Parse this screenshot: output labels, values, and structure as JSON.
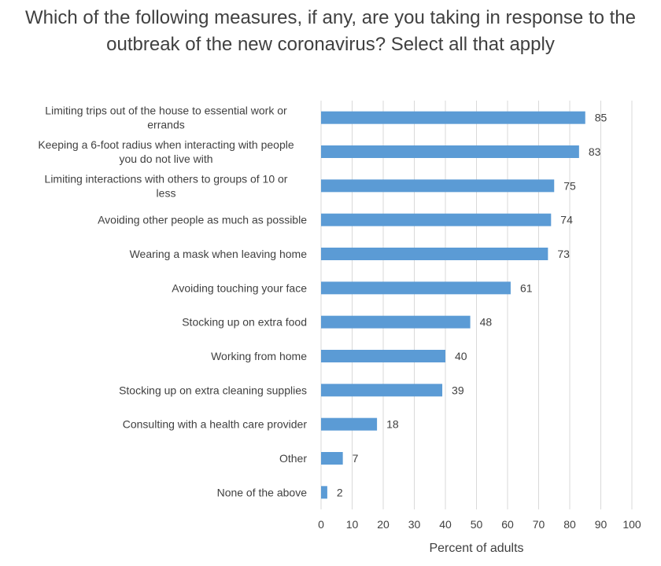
{
  "chart_data": {
    "type": "bar",
    "orientation": "horizontal",
    "title": "Which of the following measures, if any, are you taking in response to the outbreak of the new coronavirus? Select all that apply",
    "categories": [
      [
        "Limiting trips out of the house to essential work or",
        "errands"
      ],
      [
        "Keeping a 6-foot radius when interacting with people",
        "you do not live with"
      ],
      [
        "Limiting interactions with others to groups of 10 or",
        "less"
      ],
      [
        "Avoiding other people as much as possible"
      ],
      [
        "Wearing a mask when leaving home"
      ],
      [
        "Avoiding touching your face"
      ],
      [
        "Stocking up on extra food"
      ],
      [
        "Working from home"
      ],
      [
        "Stocking up on extra cleaning supplies"
      ],
      [
        "Consulting with a health care provider"
      ],
      [
        "Other"
      ],
      [
        "None of the above"
      ]
    ],
    "values": [
      85,
      83,
      75,
      74,
      73,
      61,
      48,
      40,
      39,
      18,
      7,
      2
    ],
    "xlabel": "Percent of adults",
    "ylabel": "",
    "xlim": [
      0,
      100
    ],
    "xticks": [
      0,
      10,
      20,
      30,
      40,
      50,
      60,
      70,
      80,
      90,
      100
    ],
    "grid": "vertical",
    "bar_color": "#5b9bd5",
    "data_labels": true,
    "legend": "none"
  }
}
